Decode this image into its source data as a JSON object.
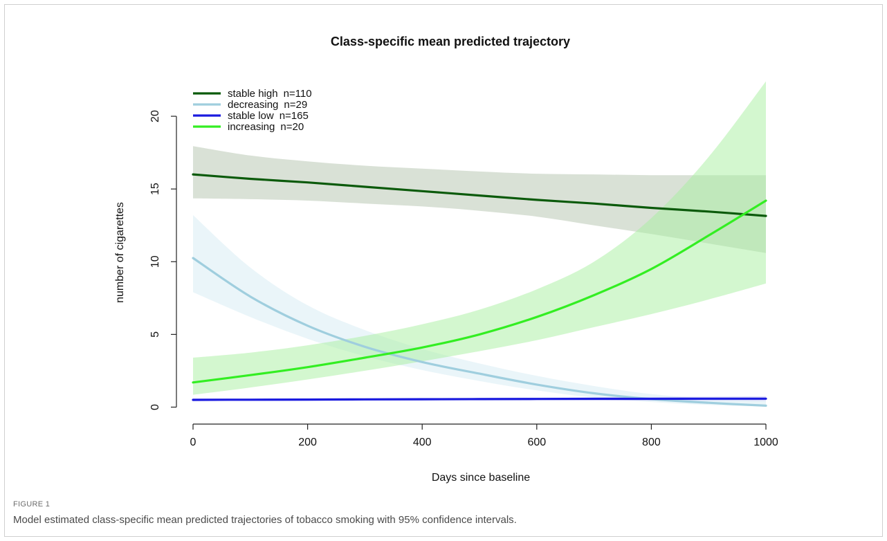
{
  "figure": {
    "label": "FIGURE 1",
    "caption": "Model estimated class-specific mean predicted trajectories of tobacco smoking with 95% confidence intervals."
  },
  "chart_data": {
    "type": "line",
    "title": "Class-specific mean predicted trajectory",
    "xlabel": "Days since baseline",
    "ylabel": "number of cigarettes",
    "xlim": [
      0,
      1000
    ],
    "ylim": [
      -0.5,
      23
    ],
    "xticks": [
      0,
      200,
      400,
      600,
      800,
      1000
    ],
    "yticks": [
      0,
      5,
      10,
      15,
      20
    ],
    "legend_position": "top-left",
    "grid": false,
    "x": [
      0,
      100,
      200,
      300,
      400,
      500,
      600,
      700,
      800,
      900,
      1000
    ],
    "series": [
      {
        "name": "stable high",
        "n_label": "n=110",
        "color": "#0b5a0b",
        "band_color": "#b9c9b4",
        "band_opacity": 0.55,
        "values": [
          16.0,
          15.7,
          15.45,
          15.15,
          14.85,
          14.55,
          14.25,
          14.0,
          13.7,
          13.45,
          13.15
        ],
        "lower": [
          14.35,
          14.3,
          14.2,
          14.0,
          13.8,
          13.5,
          13.1,
          12.5,
          11.9,
          11.25,
          10.6
        ],
        "upper": [
          17.95,
          17.3,
          16.9,
          16.6,
          16.4,
          16.2,
          16.05,
          16.0,
          15.95,
          15.95,
          15.95
        ]
      },
      {
        "name": "decreasing",
        "n_label": "n=29",
        "color": "#9fcede",
        "band_color": "#dceef5",
        "band_opacity": 0.6,
        "values": [
          10.25,
          7.6,
          5.6,
          4.15,
          3.1,
          2.3,
          1.55,
          0.95,
          0.55,
          0.3,
          0.1
        ],
        "lower": [
          7.9,
          6.2,
          4.7,
          3.5,
          2.55,
          1.8,
          1.15,
          0.65,
          0.35,
          0.15,
          0.05
        ],
        "upper": [
          13.2,
          9.6,
          7.0,
          5.3,
          4.0,
          3.0,
          2.15,
          1.45,
          0.9,
          0.6,
          0.45
        ]
      },
      {
        "name": "stable low",
        "n_label": "n=165",
        "color": "#1a1adf",
        "band_color": "#c8c8f5",
        "band_opacity": 0.6,
        "values": [
          0.5,
          0.51,
          0.52,
          0.53,
          0.54,
          0.55,
          0.56,
          0.57,
          0.57,
          0.58,
          0.58
        ],
        "lower": [
          0.42,
          0.43,
          0.44,
          0.45,
          0.46,
          0.47,
          0.47,
          0.46,
          0.45,
          0.44,
          0.43
        ],
        "upper": [
          0.6,
          0.6,
          0.61,
          0.62,
          0.63,
          0.64,
          0.66,
          0.68,
          0.7,
          0.72,
          0.74
        ]
      },
      {
        "name": "increasing",
        "n_label": "n=20",
        "color": "#33ee22",
        "band_color": "#a8f0a0",
        "band_opacity": 0.5,
        "values": [
          1.7,
          2.2,
          2.75,
          3.4,
          4.1,
          5.0,
          6.2,
          7.7,
          9.5,
          11.8,
          14.2
        ],
        "lower": [
          0.85,
          1.35,
          1.9,
          2.5,
          3.15,
          3.85,
          4.6,
          5.5,
          6.4,
          7.4,
          8.5
        ],
        "upper": [
          3.4,
          3.75,
          4.25,
          4.9,
          5.7,
          6.7,
          8.1,
          10.0,
          13.0,
          17.2,
          22.4
        ]
      }
    ]
  }
}
